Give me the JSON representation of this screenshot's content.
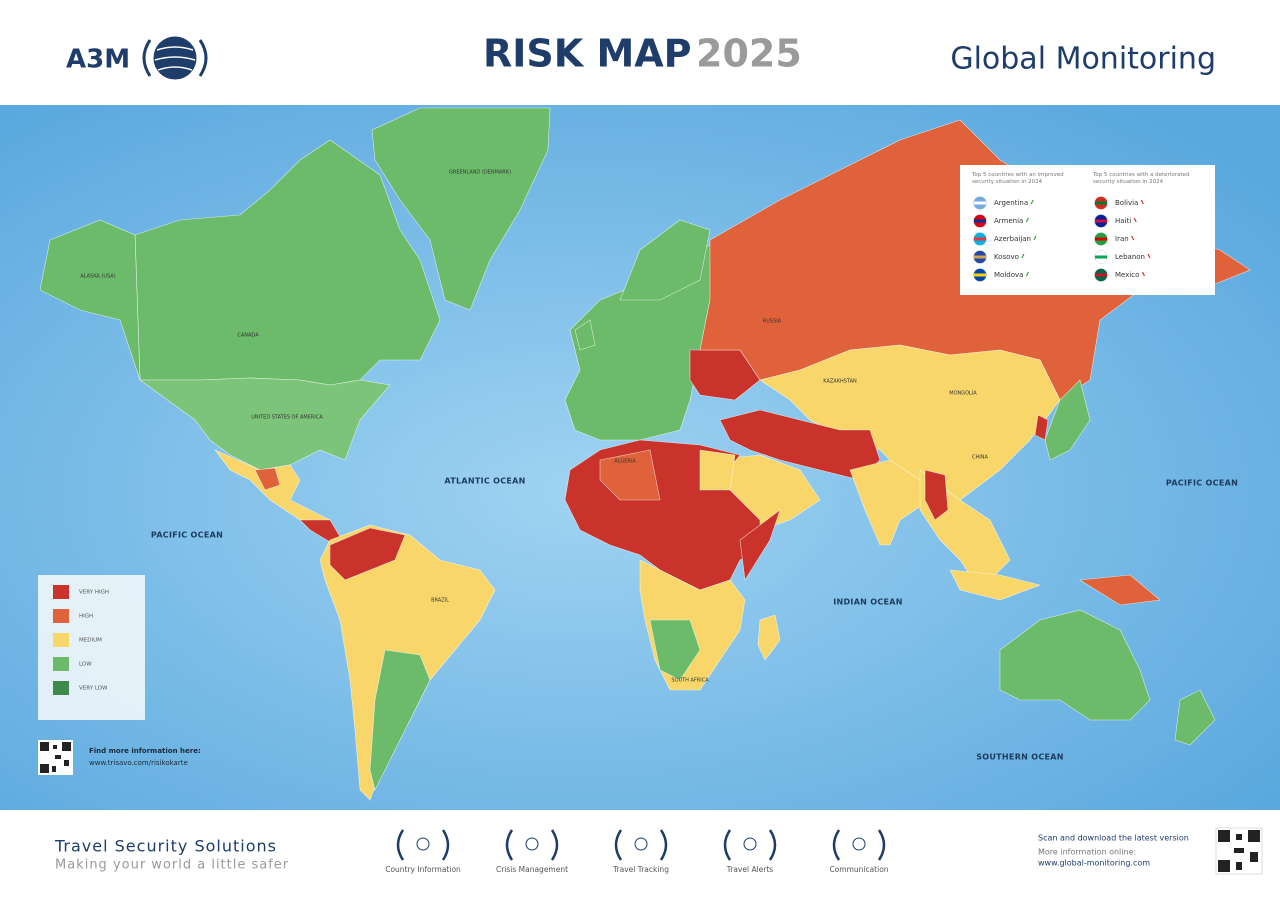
{
  "header": {
    "brand": "A3M",
    "title": "RISK MAP",
    "year": "2025",
    "right_title": "Global Monitoring"
  },
  "map": {
    "oceans": [
      "ATLANTIC OCEAN",
      "PACIFIC OCEAN",
      "PACIFIC OCEAN",
      "INDIAN OCEAN",
      "SOUTHERN OCEAN"
    ],
    "country_labels": [
      "GREENLAND (DENMARK)",
      "ALASKA (USA)",
      "CANADA",
      "UNITED STATES OF AMERICA",
      "RUSSIA",
      "KAZAKHSTAN",
      "MONGOLIA",
      "CHINA",
      "ALGERIA",
      "BRAZIL",
      "SOUTH AFRICA"
    ]
  },
  "legend": {
    "items": [
      {
        "label": "VERY HIGH",
        "color": "#c9332b"
      },
      {
        "label": "HIGH",
        "color": "#e0623a"
      },
      {
        "label": "MEDIUM",
        "color": "#f8d66a"
      },
      {
        "label": "LOW",
        "color": "#6bbb6a"
      },
      {
        "label": "VERY LOW",
        "color": "#3e8a4c"
      }
    ]
  },
  "info_box": {
    "improved_title": "Top 5 countries with an improved security situation in 2024",
    "improved": [
      "Argentina",
      "Armenia",
      "Azerbaijan",
      "Kosovo",
      "Moldova"
    ],
    "deteriorated_title": "Top 5 countries with a deteriorated security situation in 2024",
    "deteriorated": [
      "Bolivia",
      "Haiti",
      "Iran",
      "Lebanon",
      "Mexico"
    ]
  },
  "more_info": {
    "label": "Find more information here:",
    "url": "www.trisavo.com/risikokarte"
  },
  "footer": {
    "tagline": "Travel Security Solutions",
    "subline": "Making your world a little safer",
    "services": [
      "Country Information",
      "Crisis Management",
      "Travel Tracking",
      "Travel Alerts",
      "Communication"
    ],
    "scan": "Scan and download the latest version",
    "more_online": "More information online:",
    "url": "www.global-monitoring.com"
  }
}
